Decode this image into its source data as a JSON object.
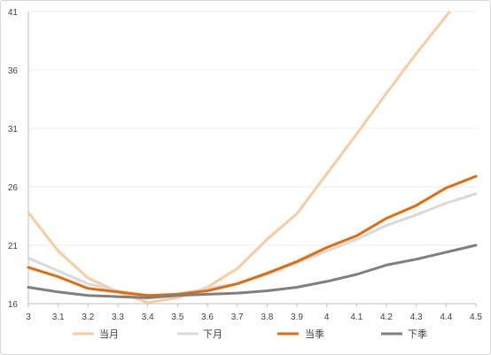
{
  "chart_data": {
    "type": "line",
    "title": "",
    "xlabel": "",
    "ylabel": "",
    "x": [
      3,
      3.1,
      3.2,
      3.3,
      3.4,
      3.5,
      3.6,
      3.7,
      3.8,
      3.9,
      4.0,
      4.1,
      4.2,
      4.3,
      4.4,
      4.5
    ],
    "x_tick_labels": [
      "3",
      "3.1",
      "3.2",
      "3.3",
      "3.4",
      "3.5",
      "3.6",
      "3.7",
      "3.8",
      "3.9",
      "4",
      "4.1",
      "4.2",
      "4.3",
      "4.4",
      "4.5"
    ],
    "y_ticks": [
      16,
      21,
      26,
      31,
      36,
      41
    ],
    "xlim": [
      3,
      4.5
    ],
    "ylim": [
      16,
      41
    ],
    "grid": true,
    "legend": "bottom",
    "series": [
      {
        "name": "当月",
        "color": "#f8cba0",
        "values": [
          23.8,
          20.5,
          18.2,
          17.0,
          16.1,
          16.5,
          17.4,
          19.0,
          21.5,
          23.7,
          27.1,
          30.5,
          34.0,
          37.4,
          40.6,
          43.8
        ]
      },
      {
        "name": "下月",
        "color": "#d9d9d9",
        "values": [
          19.9,
          18.8,
          17.7,
          17.1,
          16.5,
          16.8,
          17.3,
          17.7,
          18.5,
          19.5,
          20.5,
          21.5,
          22.7,
          23.6,
          24.6,
          25.4
        ]
      },
      {
        "name": "当季",
        "color": "#e46c0a",
        "values": [
          19.1,
          18.3,
          17.3,
          17.0,
          16.7,
          16.8,
          17.1,
          17.7,
          18.6,
          19.6,
          20.8,
          21.8,
          23.3,
          24.4,
          25.9,
          26.9
        ]
      },
      {
        "name": "下季",
        "color": "#7f7f7f",
        "values": [
          17.4,
          17.0,
          16.7,
          16.6,
          16.5,
          16.7,
          16.8,
          16.9,
          17.1,
          17.4,
          17.9,
          18.5,
          19.3,
          19.8,
          20.4,
          21.0
        ]
      }
    ]
  }
}
